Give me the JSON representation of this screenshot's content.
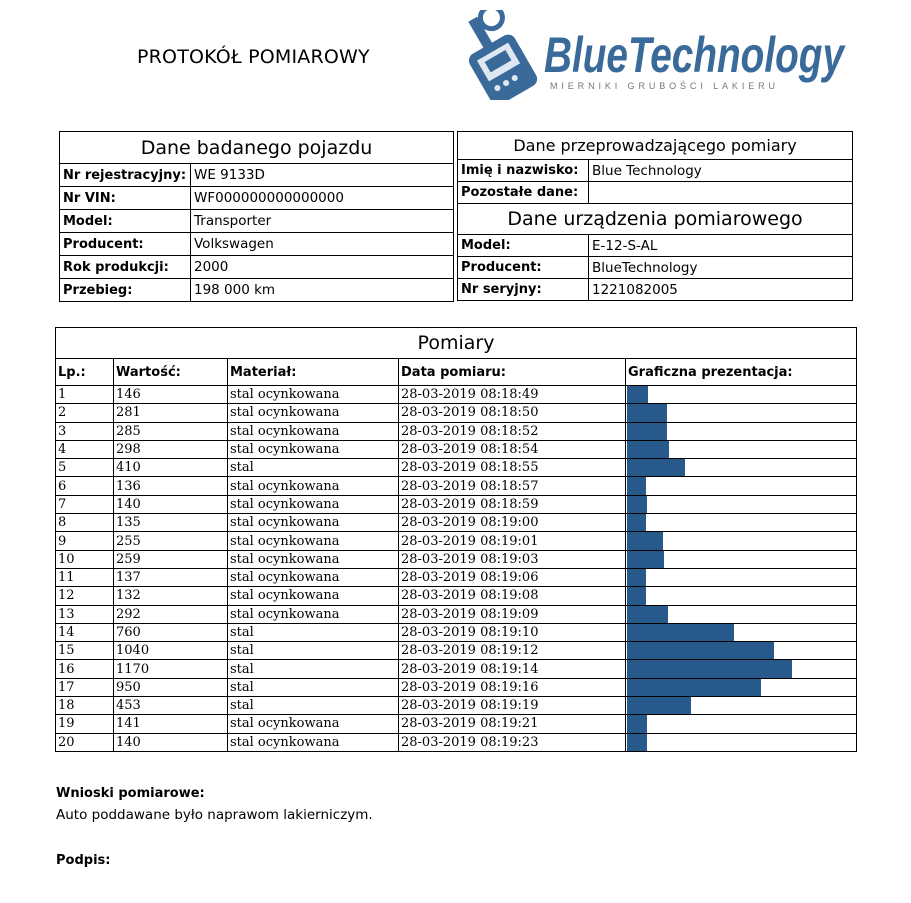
{
  "header": {
    "title": "PROTOKÓŁ POMIAROWY",
    "logo_text": "BlueTechnology",
    "logo_tagline": "MIERNIKI GRUBOŚCI LAKIERU",
    "brand_color": "#3a6a9a",
    "bar_color": "#27598b"
  },
  "vehicle": {
    "title": "Dane badanego pojazdu",
    "rows": [
      {
        "label": "Nr rejestracyjny:",
        "value": "WE 9133D"
      },
      {
        "label": "Nr VIN:",
        "value": "WF000000000000000"
      },
      {
        "label": "Model:",
        "value": "Transporter"
      },
      {
        "label": "Producent:",
        "value": "Volkswagen"
      },
      {
        "label": "Rok produkcji:",
        "value": "2000"
      },
      {
        "label": "Przebieg:",
        "value": "198 000 km"
      }
    ]
  },
  "operator": {
    "title": "Dane przeprowadzającego pomiary",
    "rows": [
      {
        "label": "Imię i nazwisko:",
        "value": "Blue Technology"
      },
      {
        "label": "Pozostałe dane:",
        "value": ""
      }
    ]
  },
  "device": {
    "title": "Dane urządzenia pomiarowego",
    "rows": [
      {
        "label": "Model:",
        "value": "E-12-S-AL"
      },
      {
        "label": "Producent:",
        "value": "BlueTechnology"
      },
      {
        "label": "Nr seryjny:",
        "value": "1221082005"
      }
    ]
  },
  "measurements": {
    "title": "Pomiary",
    "columns": [
      "Lp.:",
      "Wartość:",
      "Materiał:",
      "Data pomiaru:",
      "Graficzna prezentacja:"
    ],
    "rows": [
      [
        "1",
        "146",
        "stal ocynkowana",
        "28-03-2019 08:18:49"
      ],
      [
        "2",
        "281",
        "stal ocynkowana",
        "28-03-2019 08:18:50"
      ],
      [
        "3",
        "285",
        "stal ocynkowana",
        "28-03-2019 08:18:52"
      ],
      [
        "4",
        "298",
        "stal ocynkowana",
        "28-03-2019 08:18:54"
      ],
      [
        "5",
        "410",
        "stal",
        "28-03-2019 08:18:55"
      ],
      [
        "6",
        "136",
        "stal ocynkowana",
        "28-03-2019 08:18:57"
      ],
      [
        "7",
        "140",
        "stal ocynkowana",
        "28-03-2019 08:18:59"
      ],
      [
        "8",
        "135",
        "stal ocynkowana",
        "28-03-2019 08:19:00"
      ],
      [
        "9",
        "255",
        "stal ocynkowana",
        "28-03-2019 08:19:01"
      ],
      [
        "10",
        "259",
        "stal ocynkowana",
        "28-03-2019 08:19:03"
      ],
      [
        "11",
        "137",
        "stal ocynkowana",
        "28-03-2019 08:19:06"
      ],
      [
        "12",
        "132",
        "stal ocynkowana",
        "28-03-2019 08:19:08"
      ],
      [
        "13",
        "292",
        "stal ocynkowana",
        "28-03-2019 08:19:09"
      ],
      [
        "14",
        "760",
        "stal",
        "28-03-2019 08:19:10"
      ],
      [
        "15",
        "1040",
        "stal",
        "28-03-2019 08:19:12"
      ],
      [
        "16",
        "1170",
        "stal",
        "28-03-2019 08:19:14"
      ],
      [
        "17",
        "950",
        "stal",
        "28-03-2019 08:19:16"
      ],
      [
        "18",
        "453",
        "stal",
        "28-03-2019 08:19:19"
      ],
      [
        "19",
        "141",
        "stal ocynkowana",
        "28-03-2019 08:19:21"
      ],
      [
        "20",
        "140",
        "stal ocynkowana",
        "28-03-2019 08:19:23"
      ]
    ]
  },
  "conclusions": {
    "label": "Wnioski pomiarowe:",
    "text": "Auto poddawane było naprawom lakierniczym."
  },
  "signature": {
    "label": "Podpis:"
  }
}
